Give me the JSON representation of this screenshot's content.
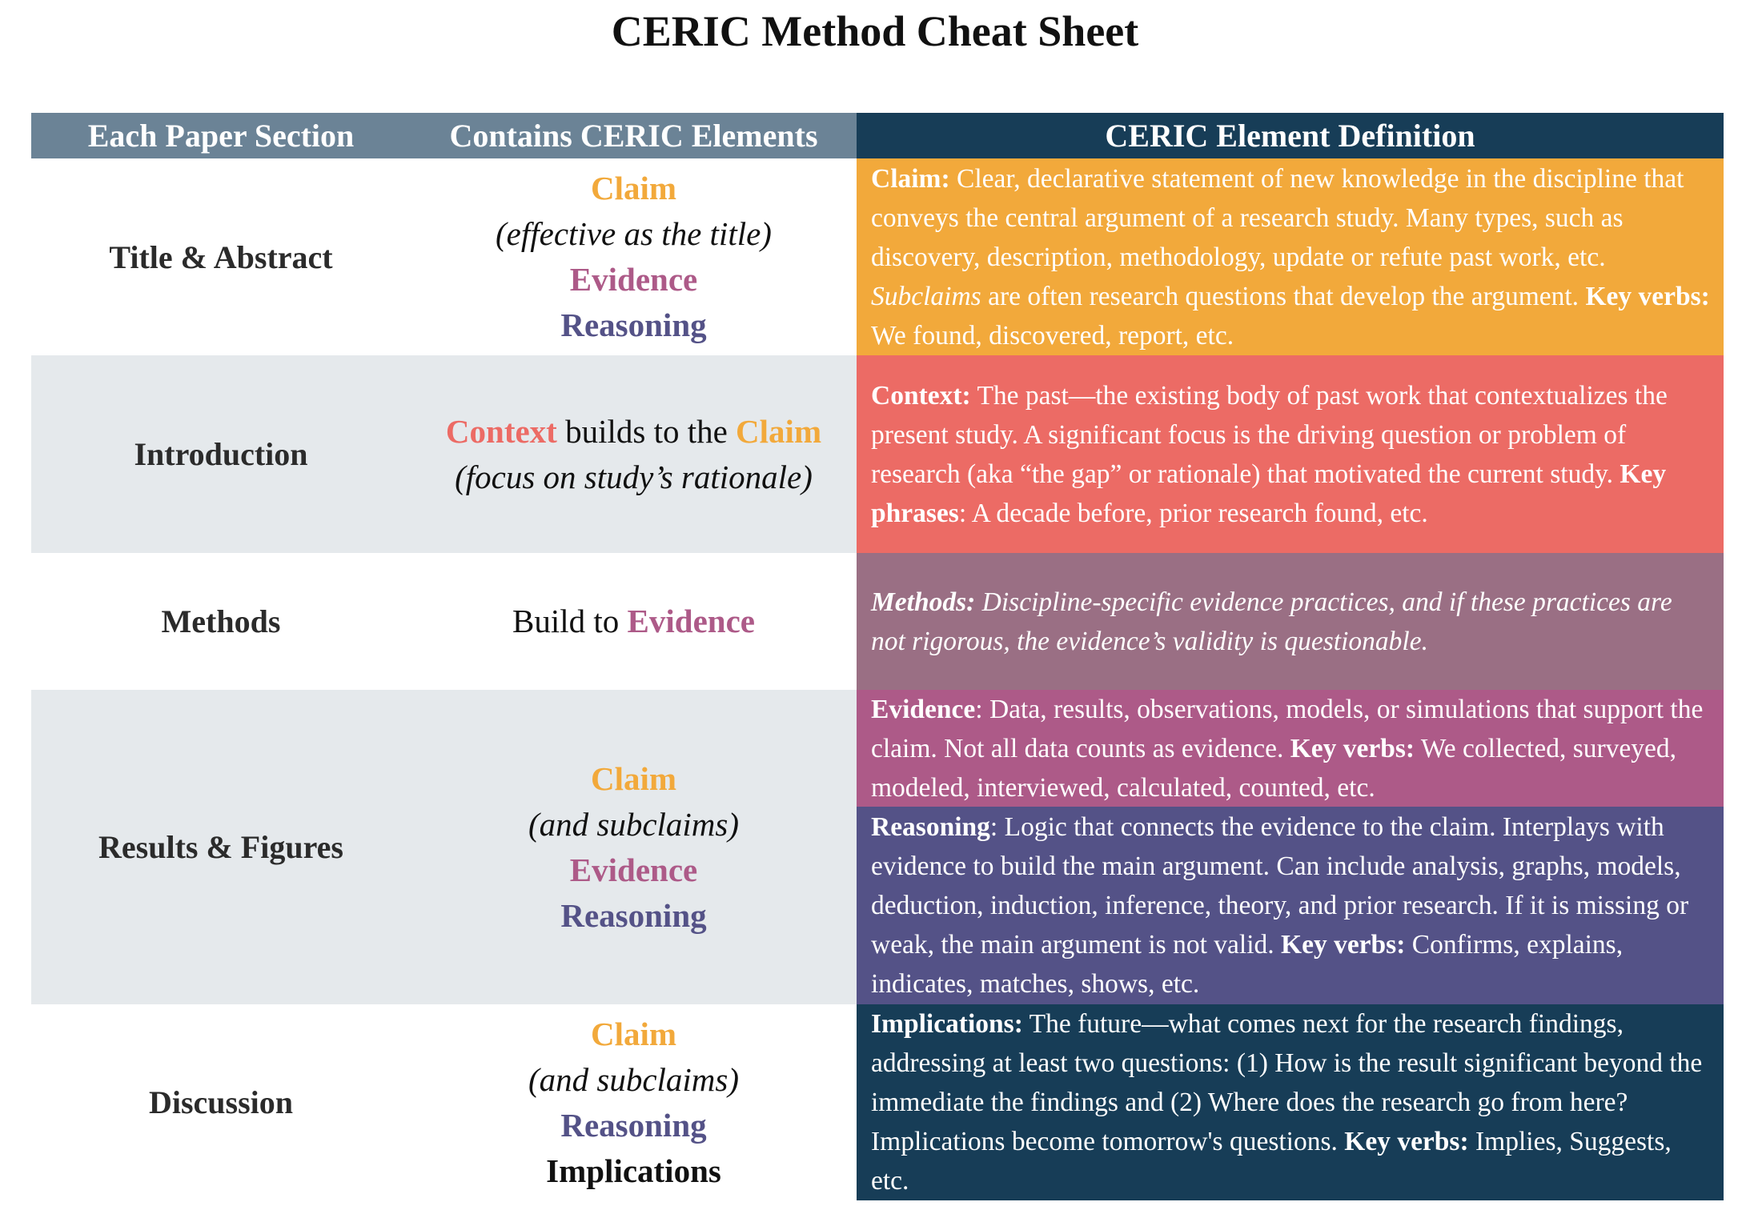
{
  "title": "CERIC Method Cheat Sheet",
  "colors": {
    "header_left": "#6b8396",
    "header_right": "#173d57",
    "row_alt": "#e5e9ec",
    "claim": "#f2a93b",
    "context": "#ec6b65",
    "methods": "#9a6f84",
    "evidence": "#ad5a88",
    "reasoning": "#545287",
    "implications": "#173d57"
  },
  "headers": [
    "Each Paper Section",
    "Contains CERIC Elements",
    "CERIC Element Definition"
  ],
  "sections": [
    {
      "name": "Title & Abstract",
      "elements": [
        "Claim",
        "(effective as the title)",
        "Evidence",
        "Reasoning"
      ]
    },
    {
      "name": "Introduction",
      "elements": [
        "Context",
        " builds to the ",
        "Claim",
        "(focus on study’s rationale)"
      ]
    },
    {
      "name": "Methods",
      "elements": [
        "Build to ",
        "Evidence"
      ]
    },
    {
      "name": "Results & Figures",
      "elements": [
        "Claim",
        "(and subclaims)",
        "Evidence",
        "Reasoning"
      ]
    },
    {
      "name": "Discussion",
      "elements": [
        "Claim",
        "(and subclaims)",
        "Reasoning",
        "Implications"
      ]
    }
  ],
  "definitions": {
    "claim": [
      "Claim:",
      " Clear, declarative statement of new knowledge in the discipline that conveys the central argument of a research study. Many types, such as discovery, description, methodology, update or refute past work, etc. ",
      "Subclaims",
      " are often research questions that develop the argument. ",
      "Key verbs:",
      " We found, discovered, report, etc."
    ],
    "context": [
      "Context:",
      " The past—the existing body of past work that contextualizes the present study. A significant focus is the driving question or problem of research (aka “the gap” or rationale) that motivated the current study. ",
      "Key phrases",
      ": A decade before, prior research found, etc."
    ],
    "methods": [
      "Methods:",
      " Discipline-specific evidence practices, and if these practices are not rigorous, the evidence’s validity is questionable."
    ],
    "evidence": [
      "Evidence",
      ": Data, results, observations, models, or simulations that support the claim. Not all data counts as evidence. ",
      "Key verbs:",
      " We collected, surveyed, modeled, interviewed, calculated, counted, etc."
    ],
    "reasoning": [
      "Reasoning",
      ": Logic that connects the evidence to the claim. Interplays with evidence to build the main argument. Can include analysis, graphs, models, deduction, induction, inference, theory, and prior research. If it is missing or weak, the main argument is not valid. ",
      "Key verbs:",
      " Confirms, explains, indicates, matches, shows, etc."
    ],
    "implications": [
      "Implications:",
      " The future—what comes next for the research findings, addressing at least two questions: (1) How is the result significant beyond the immediate the findings and (2) Where does the research go from here? Implications become tomorrow's questions. ",
      "Key verbs:",
      " Implies, Suggests, etc."
    ]
  }
}
